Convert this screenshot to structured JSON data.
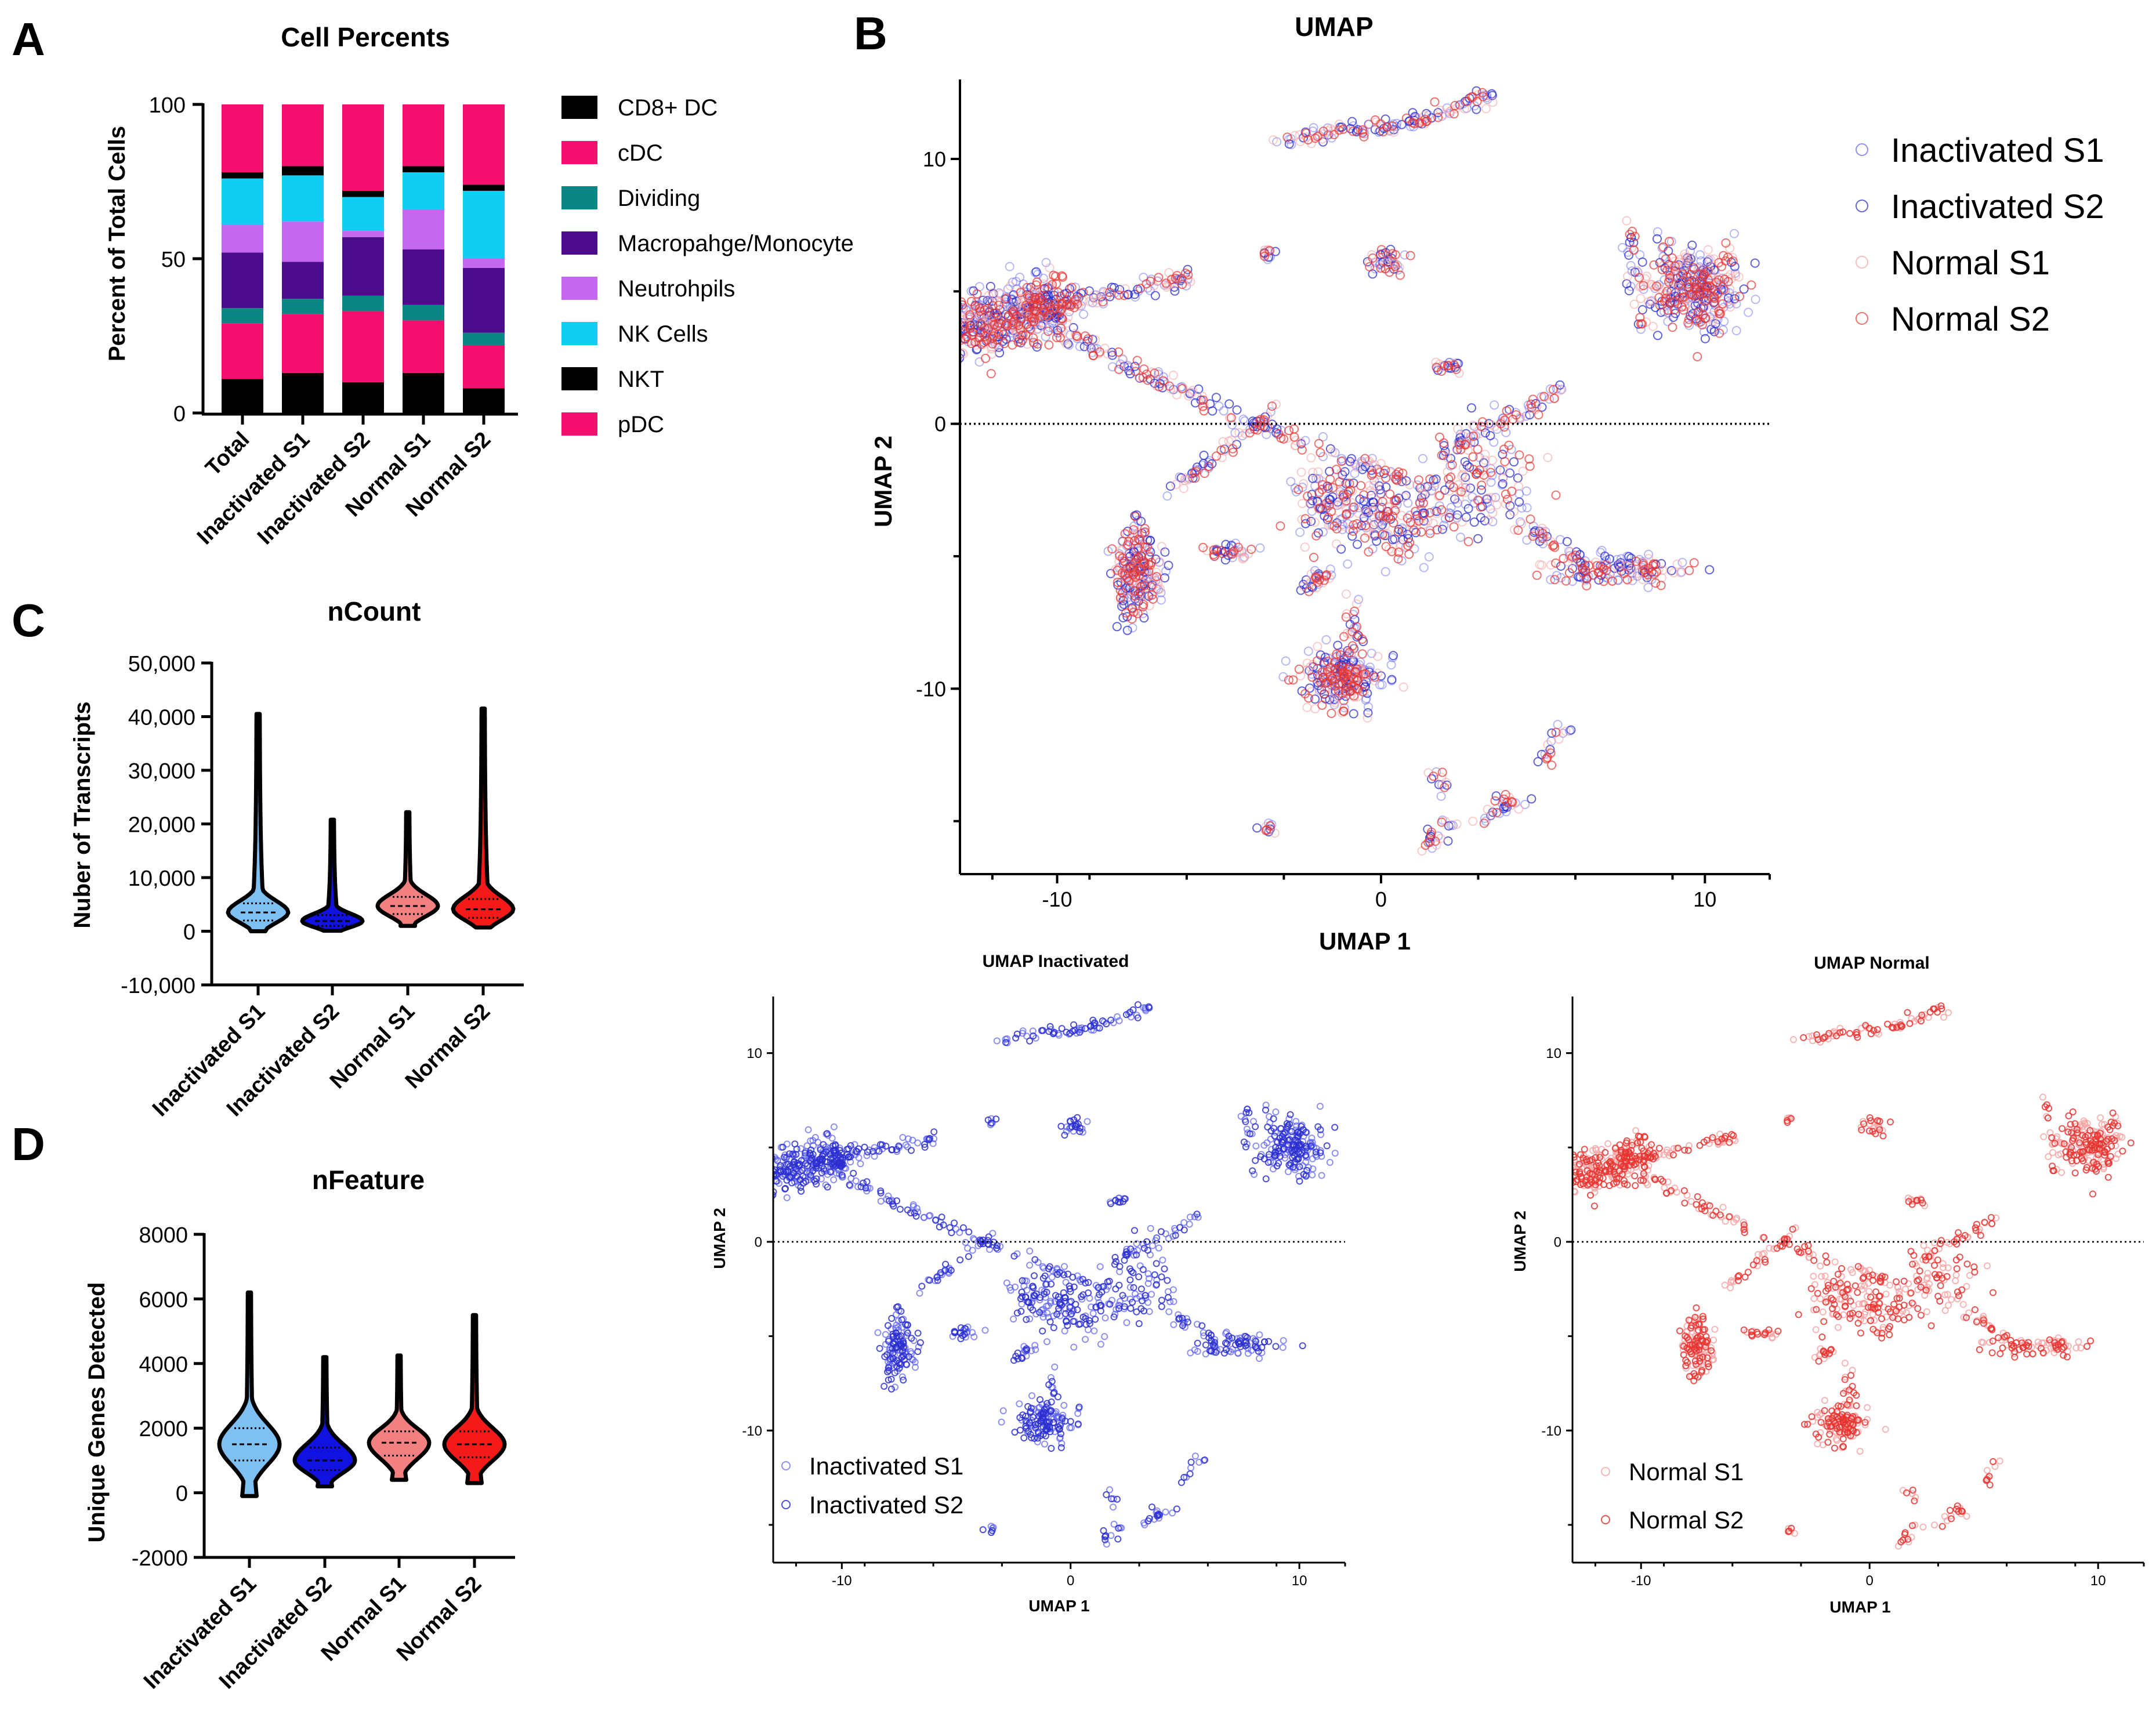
{
  "panel_letters": [
    "A",
    "B",
    "C",
    "D"
  ],
  "colors": {
    "cd8dc": "#000000",
    "cdc": "#f50f6e",
    "dividing": "#0c8585",
    "macro": "#4b0b8a",
    "neutro": "#c468f0",
    "nk": "#10cdf2",
    "nkt": "#000000",
    "pdc": "#f50f6e",
    "inact_s1": "#5b5ff0",
    "inact_s2": "#2b2fcf",
    "normal_s1": "#f5a3a3",
    "normal_s2": "#e8332f",
    "violin_inact_s1": "#7fc0f2",
    "violin_inact_s2": "#1111e0",
    "violin_normal_s1": "#f28080",
    "violin_normal_s2": "#f51a1a"
  },
  "chart_data": [
    {
      "id": "A",
      "type": "bar",
      "stacked": true,
      "title": "Cell Percents",
      "ylabel": "Percent of Total Cells",
      "ylim": [
        0,
        100
      ],
      "yticks": [
        "0",
        "50",
        "100"
      ],
      "categories": [
        "Total",
        "Inactivated S1",
        "Inactivated S2",
        "Normal S1",
        "Normal S2"
      ],
      "legend": [
        "CD8+ DC",
        "cDC",
        "Dividing",
        "Macropahge/Monocyte",
        "Neutrohpils",
        "NK Cells",
        "NKT",
        "pDC"
      ],
      "series": [
        {
          "name": "NKT",
          "values": [
            11,
            13,
            10,
            13,
            8
          ]
        },
        {
          "name": "pDC",
          "values": [
            18,
            19,
            23,
            17,
            14
          ]
        },
        {
          "name": "Dividing",
          "values": [
            5,
            5,
            5,
            5,
            4
          ]
        },
        {
          "name": "Macropahge/Monocyte",
          "values": [
            18,
            12,
            19,
            18,
            21
          ]
        },
        {
          "name": "Neutrohpils",
          "values": [
            9,
            13,
            2,
            13,
            3
          ]
        },
        {
          "name": "NK Cells",
          "values": [
            15,
            15,
            11,
            12,
            22
          ]
        },
        {
          "name": "CD8+ DC",
          "values": [
            2,
            3,
            2,
            2,
            2
          ]
        },
        {
          "name": "cDC",
          "values": [
            22,
            20,
            28,
            20,
            26
          ]
        }
      ]
    },
    {
      "id": "B",
      "type": "scatter",
      "title": "UMAP",
      "xlabel": "UMAP 1",
      "ylabel": "UMAP 2",
      "xlim": [
        -13,
        12
      ],
      "ylim": [
        -17,
        13
      ],
      "xticks": [
        "-10",
        "0",
        "10"
      ],
      "yticks": [
        "-10",
        "0",
        "10"
      ],
      "legend": [
        "Inactivated S1",
        "Inactivated S2",
        "Normal S1",
        "Normal S2"
      ]
    },
    {
      "id": "B_inactivated",
      "type": "scatter",
      "title": "UMAP Inactivated",
      "xlabel": "UMAP 1",
      "ylabel": "UMAP 2",
      "xlim": [
        -13,
        12
      ],
      "ylim": [
        -17,
        13
      ],
      "xticks": [
        "-10",
        "0",
        "10"
      ],
      "yticks": [
        "-10",
        "0",
        "10"
      ],
      "legend": [
        "Inactivated S1",
        "Inactivated S2"
      ]
    },
    {
      "id": "B_normal",
      "type": "scatter",
      "title": "UMAP Normal",
      "xlabel": "UMAP 1",
      "ylabel": "UMAP 2",
      "xlim": [
        -13,
        12
      ],
      "ylim": [
        -17,
        13
      ],
      "xticks": [
        "-10",
        "0",
        "10"
      ],
      "yticks": [
        "-10",
        "0",
        "10"
      ],
      "legend": [
        "Normal S1",
        "Normal S2"
      ]
    },
    {
      "id": "C",
      "type": "violin",
      "title": "nCount",
      "ylabel": "Nuber of  Transcripts",
      "ylim": [
        -10000,
        50000
      ],
      "yticks": [
        "50,000",
        "40,000",
        "30,000",
        "20,000",
        "10,000",
        "0",
        "-10,000"
      ],
      "categories": [
        "Inactivated S1",
        "Inactivated S2",
        "Normal S1",
        "Normal S2"
      ],
      "stats": [
        {
          "min": 0,
          "max": 40500,
          "q1": 2000,
          "median": 3500,
          "q3": 5200
        },
        {
          "min": 100,
          "max": 20800,
          "q1": 1000,
          "median": 1900,
          "q3": 3000
        },
        {
          "min": 1000,
          "max": 22200,
          "q1": 3200,
          "median": 4700,
          "q3": 6400
        },
        {
          "min": 700,
          "max": 41500,
          "q1": 2500,
          "median": 4100,
          "q3": 6000
        }
      ]
    },
    {
      "id": "D",
      "type": "violin",
      "title": "nFeature",
      "ylabel": "Unique Genes Detected",
      "ylim": [
        -2000,
        8000
      ],
      "yticks": [
        "8000",
        "6000",
        "4000",
        "2000",
        "0",
        "-2000"
      ],
      "categories": [
        "Inactivated S1",
        "Inactivated S2",
        "Normal S1",
        "Normal S2"
      ],
      "stats": [
        {
          "min": -100,
          "max": 6200,
          "q1": 1000,
          "median": 1500,
          "q3": 2000
        },
        {
          "min": 200,
          "max": 4200,
          "q1": 700,
          "median": 1000,
          "q3": 1400
        },
        {
          "min": 400,
          "max": 4250,
          "q1": 1150,
          "median": 1550,
          "q3": 1900
        },
        {
          "min": 300,
          "max": 5500,
          "q1": 1100,
          "median": 1500,
          "q3": 1900
        }
      ]
    }
  ]
}
